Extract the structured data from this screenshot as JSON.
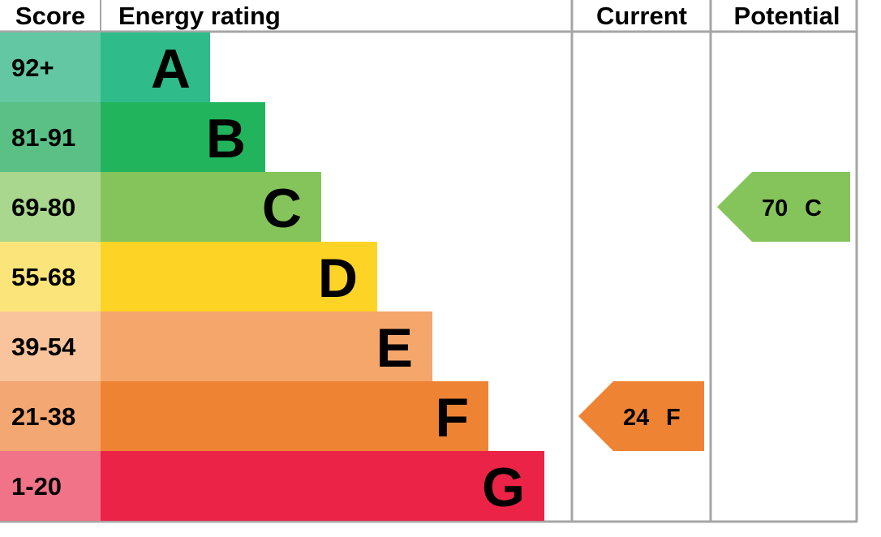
{
  "headers": {
    "score": "Score",
    "rating": "Energy rating",
    "current": "Current",
    "potential": "Potential"
  },
  "chart_data": {
    "type": "bar",
    "title": "",
    "categories": [
      "A",
      "B",
      "C",
      "D",
      "E",
      "F",
      "G"
    ],
    "score_ranges": [
      "92+",
      "81-91",
      "69-80",
      "55-68",
      "39-54",
      "21-38",
      "1-20"
    ],
    "colors": [
      "#2fbb8a",
      "#22b45d",
      "#85c45b",
      "#fdd425",
      "#f5a66b",
      "#ef8334",
      "#eb2346"
    ],
    "score_colors": [
      "#63c7a3",
      "#5ac086",
      "#a9d78d",
      "#fbe57a",
      "#f9c39c",
      "#f3a772",
      "#f07388"
    ],
    "current": {
      "value": 24,
      "band": "F",
      "label_value": "24",
      "label_band": "F",
      "color": "#ef8334"
    },
    "potential": {
      "value": 70,
      "band": "C",
      "label_value": "70",
      "label_band": "C",
      "color": "#85c45b"
    }
  }
}
